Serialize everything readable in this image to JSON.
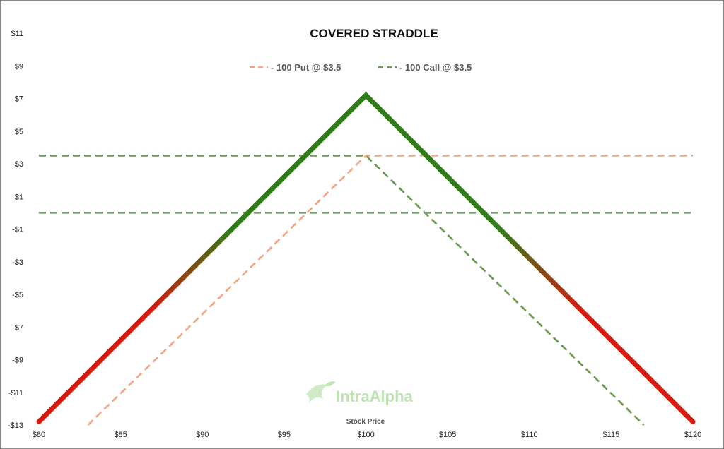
{
  "chart_data": {
    "type": "line",
    "title": "COVERED STRADDLE",
    "xlabel": "Stock Price",
    "ylabel": "",
    "xlim": [
      80,
      120
    ],
    "ylim": [
      -13,
      11
    ],
    "x_ticks": [
      80,
      85,
      90,
      95,
      100,
      105,
      110,
      115,
      120
    ],
    "x_tick_labels": [
      "$80",
      "$85",
      "$90",
      "$95",
      "$100",
      "$105",
      "$110",
      "$115",
      "$120"
    ],
    "y_ticks": [
      11,
      9,
      7,
      5,
      3,
      1,
      -1,
      -3,
      -5,
      -7,
      -9,
      -11,
      -13
    ],
    "y_tick_labels": [
      "$11",
      "$9",
      "$7",
      "$5",
      "$3",
      "$1",
      "-$1",
      "-$3",
      "-$5",
      "-$7",
      "-$9",
      "-$11",
      "-$13"
    ],
    "legend_position": "top-center",
    "series": [
      {
        "name": "- 100 Put @ $3.5",
        "color": "#f4a582",
        "style": "dashed",
        "in_legend": true,
        "points": [
          [
            83,
            -13
          ],
          [
            100,
            3.5
          ],
          [
            120,
            3.5
          ]
        ]
      },
      {
        "name": "- 100 Call @ $3.5",
        "color": "#6a9a4e",
        "style": "dashed",
        "in_legend": true,
        "points": [
          [
            80,
            3.5
          ],
          [
            100,
            3.5
          ],
          [
            117,
            -13
          ]
        ]
      },
      {
        "name": "",
        "color": "#7fa07a",
        "style": "dashed",
        "in_legend": false,
        "points": [
          [
            80,
            0
          ],
          [
            120,
            0
          ]
        ]
      },
      {
        "name": "",
        "color": "#2e7d14",
        "loss_color": "#d61a0e",
        "style": "solid-thick",
        "in_legend": false,
        "points": [
          [
            80,
            -12.8
          ],
          [
            100,
            7.2
          ],
          [
            120,
            -12.8
          ]
        ]
      }
    ],
    "grid": false
  },
  "watermark": {
    "text": "IntraAlpha",
    "icon": "hummingbird-logo-icon"
  }
}
